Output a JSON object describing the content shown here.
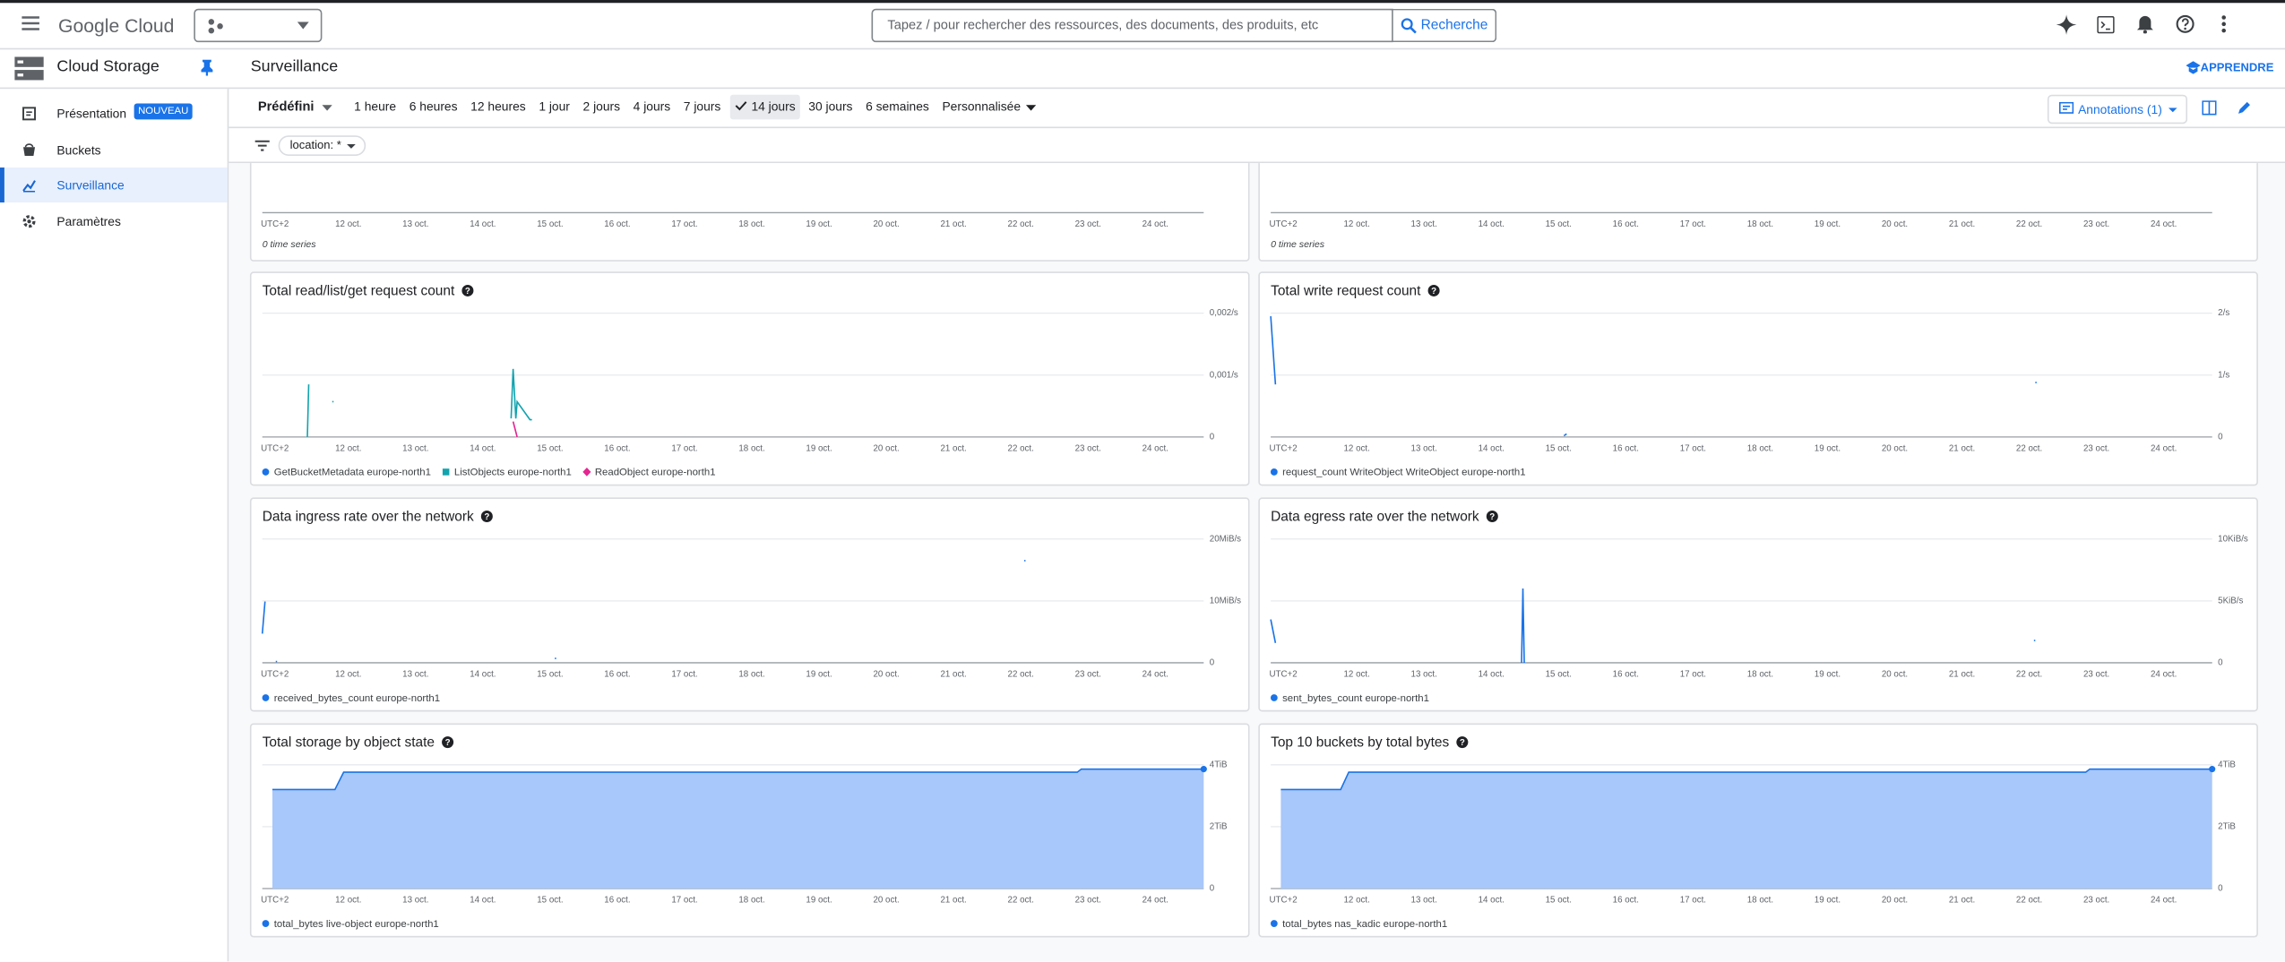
{
  "header": {
    "product": "Google Cloud",
    "search_placeholder": "Tapez / pour rechercher des ressources, des documents, des produits, etc",
    "search_button": "Recherche"
  },
  "sidebar": {
    "title": "Cloud Storage",
    "items": [
      {
        "label": "Présentation",
        "badge": "NOUVEAU",
        "selected": false
      },
      {
        "label": "Buckets",
        "selected": false
      },
      {
        "label": "Surveillance",
        "selected": true
      },
      {
        "label": "Paramètres",
        "selected": false
      }
    ]
  },
  "page": {
    "title": "Surveillance",
    "learn": "APPRENDRE"
  },
  "toolbar": {
    "preset": "Prédéfini",
    "ranges": [
      "1 heure",
      "6 heures",
      "12 heures",
      "1 jour",
      "2 jours",
      "4 jours",
      "7 jours",
      "14 jours",
      "30 jours",
      "6 semaines"
    ],
    "selected_range": "14 jours",
    "custom": "Personnalisée",
    "annotations": "Annotations (1)",
    "filter": "location: *"
  },
  "time_axis": {
    "origin_label": "UTC+2",
    "xlim": [
      10.72,
      24.72
    ],
    "xticks": [
      {
        "value": 12,
        "label": "12 oct."
      },
      {
        "value": 13,
        "label": "13 oct."
      },
      {
        "value": 14,
        "label": "14 oct."
      },
      {
        "value": 15,
        "label": "15 oct."
      },
      {
        "value": 16,
        "label": "16 oct."
      },
      {
        "value": 17,
        "label": "17 oct."
      },
      {
        "value": 18,
        "label": "18 oct."
      },
      {
        "value": 19,
        "label": "19 oct."
      },
      {
        "value": 20,
        "label": "20 oct."
      },
      {
        "value": 21,
        "label": "21 oct."
      },
      {
        "value": 22,
        "label": "22 oct."
      },
      {
        "value": 23,
        "label": "23 oct."
      },
      {
        "value": 24,
        "label": "24 oct."
      }
    ]
  },
  "chart_data": [
    {
      "type": "line",
      "empty_label": "0 time series",
      "series": []
    },
    {
      "type": "line",
      "empty_label": "0 time series",
      "series": []
    },
    {
      "type": "line",
      "title": "Total read/list/get request count",
      "ylim": [
        0,
        0.002
      ],
      "yticks": [
        0,
        {
          "value": 0.001,
          "label": "0,001/s"
        },
        {
          "value": 0.002,
          "label": "0,002/s"
        }
      ],
      "grid": true,
      "series": [
        {
          "name": "GetBucketMetadata europe-north1",
          "color": "#1a73e8",
          "marker": "circle",
          "x": [
            14.0
          ],
          "values": [
            0
          ]
        },
        {
          "name": "ListObjects europe-north1",
          "color": "#12a4af",
          "marker": "square",
          "x": [
            11.39,
            11.41,
            11.42,
            11.76,
            11.78,
            11.79,
            14.42,
            14.45,
            14.49,
            14.51,
            14.7,
            14.73
          ],
          "values": [
            0,
            0.00085,
            null,
            0.00057,
            0.00057,
            null,
            0.0003,
            0.0011,
            0.0003,
            0.00057,
            0.00028,
            0.00028
          ]
        },
        {
          "name": "ReadObject europe-north1",
          "color": "#e52592",
          "marker": "diamond",
          "x": [
            14.45,
            14.51
          ],
          "values": [
            0.00025,
            0
          ]
        }
      ]
    },
    {
      "type": "line",
      "title": "Total write request count",
      "ylim": [
        0,
        2
      ],
      "yticks": [
        0,
        {
          "value": 1,
          "label": "1/s"
        },
        {
          "value": 2,
          "label": "2/s"
        }
      ],
      "grid": true,
      "series": [
        {
          "name": "request_count WriteObject WriteObject europe-north1",
          "color": "#1a73e8",
          "marker": "circle",
          "x": [
            10.72,
            10.79,
            10.8,
            15.08,
            15.12,
            15.13,
            22.09,
            22.11
          ],
          "values": [
            1.95,
            0.85,
            null,
            0.02,
            0.05,
            null,
            0.88,
            0.88
          ]
        }
      ]
    },
    {
      "type": "line",
      "title": "Data ingress rate over the network",
      "ylim": [
        0,
        20
      ],
      "yticks": [
        0,
        {
          "value": 10,
          "label": "10MiB/s"
        },
        {
          "value": 20,
          "label": "20MiB/s"
        }
      ],
      "grid": true,
      "series": [
        {
          "name": "received_bytes_count europe-north1",
          "color": "#1a73e8",
          "marker": "circle",
          "x": [
            10.72,
            10.76,
            10.77,
            10.92,
            10.94,
            10.95,
            15.07,
            15.09,
            15.1,
            22.05,
            22.07
          ],
          "values": [
            4.7,
            9.9,
            null,
            0.2,
            0.2,
            null,
            0.7,
            0.7,
            null,
            16.5,
            16.5
          ]
        }
      ]
    },
    {
      "type": "line",
      "title": "Data egress rate over the network",
      "ylim": [
        0,
        10
      ],
      "yticks": [
        0,
        {
          "value": 5,
          "label": "5KiB/s"
        },
        {
          "value": 10,
          "label": "10KiB/s"
        }
      ],
      "grid": true,
      "series": [
        {
          "name": "sent_bytes_count europe-north1",
          "color": "#1a73e8",
          "marker": "circle",
          "x": [
            10.72,
            10.79,
            10.8,
            14.45,
            14.47,
            14.49,
            14.5,
            22.07,
            22.09
          ],
          "values": [
            3.5,
            1.6,
            null,
            0,
            6.0,
            0,
            null,
            1.8,
            1.8
          ]
        }
      ]
    },
    {
      "type": "area",
      "title": "Total storage by object state",
      "ylim": [
        0,
        4
      ],
      "yticks": [
        0,
        {
          "value": 2,
          "label": "2TiB"
        },
        {
          "value": 4,
          "label": "4TiB"
        }
      ],
      "grid": true,
      "series": [
        {
          "name": "total_bytes live-object europe-north1",
          "color": "#1a73e8",
          "fill": "#a8c7fa",
          "marker": "circle",
          "x": [
            10.87,
            11.8,
            11.93,
            22.84,
            22.9,
            24.72
          ],
          "values": [
            3.2,
            3.2,
            3.76,
            3.76,
            3.86,
            3.86
          ]
        }
      ]
    },
    {
      "type": "area",
      "title": "Top 10 buckets by total bytes",
      "ylim": [
        0,
        4
      ],
      "yticks": [
        0,
        {
          "value": 2,
          "label": "2TiB"
        },
        {
          "value": 4,
          "label": "4TiB"
        }
      ],
      "grid": true,
      "series": [
        {
          "name": "total_bytes nas_kadic europe-north1",
          "color": "#1a73e8",
          "fill": "#a8c7fa",
          "marker": "circle",
          "x": [
            10.87,
            11.76,
            11.88,
            22.84,
            22.9,
            24.72
          ],
          "values": [
            3.2,
            3.2,
            3.76,
            3.76,
            3.86,
            3.86
          ]
        }
      ]
    }
  ]
}
